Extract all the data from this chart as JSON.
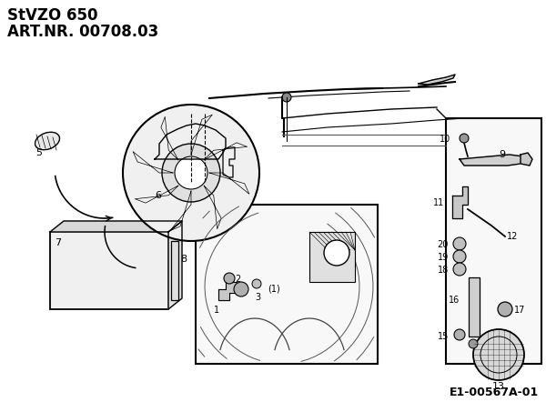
{
  "title_line1": "StVZO 650",
  "title_line2": "ART.NR. 00708.03",
  "bottom_right_text": "E1-00567A-01",
  "bg_color": "#ffffff",
  "figsize": [
    6.0,
    4.42
  ],
  "dpi": 100
}
